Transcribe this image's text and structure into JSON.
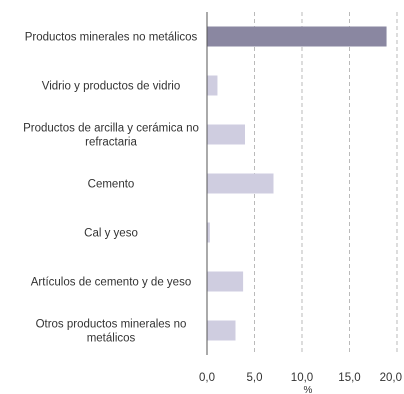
{
  "chart_data": {
    "type": "bar",
    "orientation": "horizontal",
    "categories": [
      "Productos minerales no metálicos",
      "Vidrio y productos de vidrio",
      "Productos de arcilla y cerámica no refractaria",
      "Cemento",
      "Cal y yeso",
      "Artículos de cemento y de yeso",
      "Otros productos minerales no metálicos"
    ],
    "category_lines": [
      [
        "Productos minerales no metálicos"
      ],
      [
        "Vidrio y productos de vidrio"
      ],
      [
        "Productos de arcilla y cerámica no",
        "refractaria"
      ],
      [
        "Cemento"
      ],
      [
        "Cal y yeso"
      ],
      [
        "Artículos de cemento y de yeso"
      ],
      [
        "Otros productos minerales no",
        "metálicos"
      ]
    ],
    "values": [
      18.9,
      1.1,
      4.0,
      7.0,
      0.3,
      3.8,
      3.0
    ],
    "x_ticks": [
      "0,0",
      "5,0",
      "10,0",
      "15,0",
      "20,0"
    ],
    "x_tick_values": [
      0,
      5,
      10,
      15,
      20
    ],
    "xlabel": "%",
    "xlim": [
      0,
      20
    ],
    "grid": "vertical dashed",
    "highlight_color": "#8a87a1",
    "bar_color": "#cfcde0",
    "grid_color": "#aaaaaa",
    "axis_color": "#555555"
  }
}
